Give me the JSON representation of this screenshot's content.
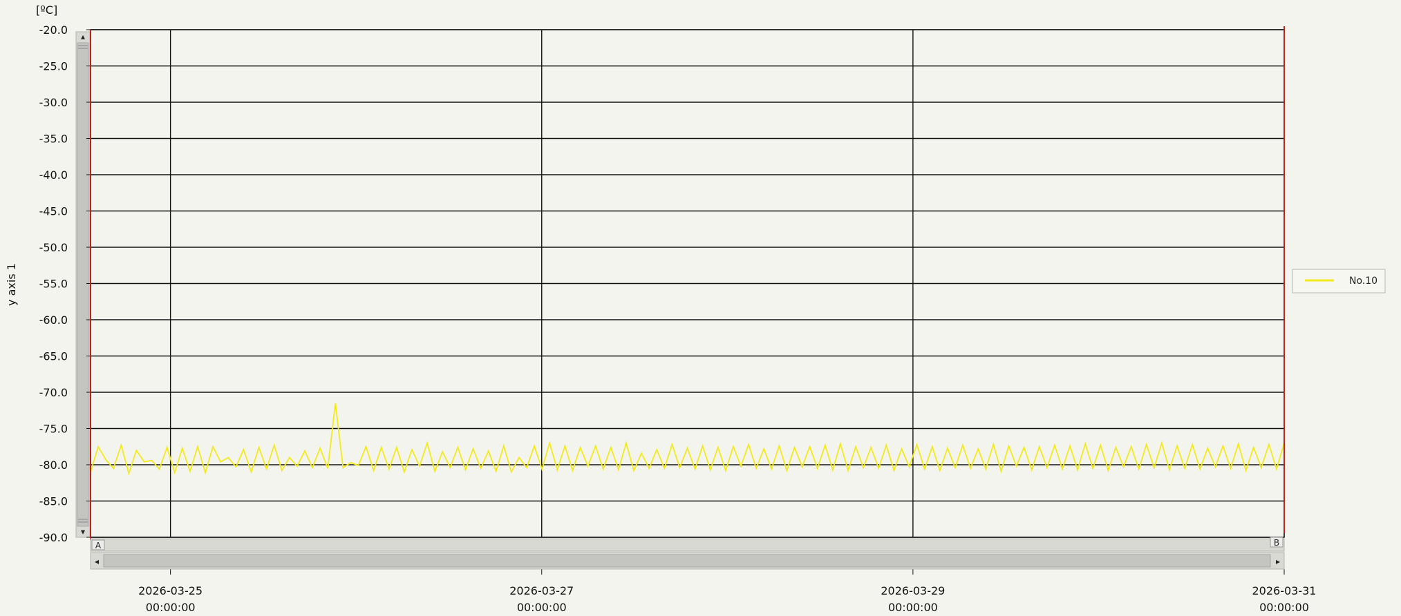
{
  "chart_data": {
    "type": "line",
    "unit": "[ºC]",
    "ylabel": "y axis 1",
    "xlabel": "",
    "ylim": [
      -90.0,
      -20.0
    ],
    "yticks": [
      "-20.0",
      "-25.0",
      "-30.0",
      "-35.0",
      "-40.0",
      "-45.0",
      "-50.0",
      "-55.0",
      "-60.0",
      "-65.0",
      "-70.0",
      "-75.0",
      "-80.0",
      "-85.0",
      "-90.0"
    ],
    "xlim": [
      "2026-03-24T13:40:00",
      "2026-03-31T00:00:00"
    ],
    "xticks": [
      {
        "date": "2026-03-25",
        "time": "00:00:00"
      },
      {
        "date": "2026-03-27",
        "time": "00:00:00"
      },
      {
        "date": "2026-03-29",
        "time": "00:00:00"
      },
      {
        "date": "2026-03-31",
        "time": "00:00:00"
      }
    ],
    "grid": true,
    "legend_position": "right",
    "series": [
      {
        "name": "No.10",
        "color": "#f2ea1a",
        "x_start": "2026-03-24T13:40:00",
        "x_end": "2026-03-31T00:00:00",
        "values": [
          -81.0,
          -77.5,
          -79.3,
          -80.5,
          -77.3,
          -81.2,
          -78.0,
          -79.6,
          -79.4,
          -80.6,
          -77.6,
          -81.1,
          -77.7,
          -80.9,
          -77.5,
          -81.1,
          -77.5,
          -79.6,
          -79.0,
          -80.3,
          -77.9,
          -81.0,
          -77.6,
          -80.6,
          -77.3,
          -80.8,
          -79.0,
          -80.2,
          -78.1,
          -80.4,
          -77.7,
          -80.5,
          -71.5,
          -80.4,
          -79.7,
          -80.1,
          -77.5,
          -80.8,
          -77.6,
          -80.6,
          -77.6,
          -81.0,
          -77.9,
          -80.2,
          -77.0,
          -80.9,
          -78.2,
          -80.4,
          -77.6,
          -80.7,
          -77.8,
          -80.5,
          -78.1,
          -80.9,
          -77.4,
          -81.0,
          -79.0,
          -80.4,
          -77.4,
          -80.6,
          -77.0,
          -80.7,
          -77.4,
          -80.8,
          -77.6,
          -80.2,
          -77.4,
          -80.6,
          -77.6,
          -80.7,
          -77.0,
          -80.8,
          -78.4,
          -80.5,
          -77.9,
          -80.5,
          -77.2,
          -80.4,
          -77.7,
          -80.6,
          -77.4,
          -80.7,
          -77.6,
          -80.8,
          -77.5,
          -80.2,
          -77.2,
          -80.5,
          -77.8,
          -80.6,
          -77.4,
          -80.8,
          -77.6,
          -80.3,
          -77.5,
          -80.5,
          -77.3,
          -80.7,
          -77.1,
          -80.8,
          -77.5,
          -80.4,
          -77.6,
          -80.5,
          -77.3,
          -80.8,
          -77.8,
          -80.3,
          -77.2,
          -80.6,
          -77.5,
          -80.8,
          -77.7,
          -80.4,
          -77.3,
          -80.5,
          -77.8,
          -80.6,
          -77.2,
          -80.9,
          -77.4,
          -80.2,
          -77.6,
          -80.7,
          -77.5,
          -80.4,
          -77.3,
          -80.6,
          -77.4,
          -80.7,
          -77.1,
          -80.5,
          -77.3,
          -80.8,
          -77.6,
          -80.3,
          -77.5,
          -80.6,
          -77.2,
          -80.4,
          -77.0,
          -80.7,
          -77.4,
          -80.5,
          -77.2,
          -80.6,
          -77.7,
          -80.3,
          -77.4,
          -80.5,
          -77.1,
          -80.8,
          -77.6,
          -80.4,
          -77.2,
          -80.6,
          -77.0
        ]
      }
    ]
  },
  "scrollbar": {
    "left_marker": "A",
    "right_marker": "B",
    "left_arrow": "◂",
    "right_arrow": "▸",
    "up_arrow": "▴",
    "down_arrow": "▾"
  },
  "colors": {
    "background": "#f4f4ee",
    "grid": "#111111",
    "cursor_line": "#c0201a",
    "series": "#f2ea1a",
    "scrollbar_bg": "#d9d9d4",
    "scrollbar_thumb": "#c4c4c0"
  }
}
